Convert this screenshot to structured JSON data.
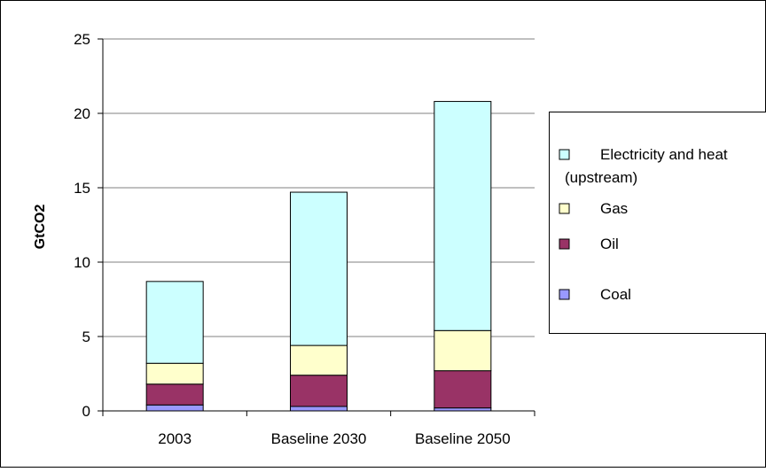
{
  "chart_data": {
    "type": "bar",
    "stacked": true,
    "title": "",
    "xlabel": "",
    "ylabel": "GtCO2",
    "ylim": [
      0,
      25
    ],
    "yticks": [
      "0",
      "5",
      "10",
      "15",
      "20",
      "25"
    ],
    "categories": [
      "2003",
      "Baseline 2030",
      "Baseline 2050"
    ],
    "series": [
      {
        "name": "Coal",
        "color": "#9999ff",
        "values": [
          0.4,
          0.3,
          0.2
        ]
      },
      {
        "name": "Oil",
        "color": "#993366",
        "values": [
          1.4,
          2.1,
          2.5
        ]
      },
      {
        "name": "Gas",
        "color": "#ffffcc",
        "values": [
          1.4,
          2.0,
          2.7
        ]
      },
      {
        "name": "Electricity and heat (upstream)",
        "color": "#ccffff",
        "values": [
          5.5,
          10.3,
          15.4
        ]
      }
    ],
    "legend_order": [
      "Electricity and heat",
      "(upstream)",
      "Gas",
      "Oil",
      "Coal"
    ],
    "grid": true,
    "legend_position": "right"
  }
}
